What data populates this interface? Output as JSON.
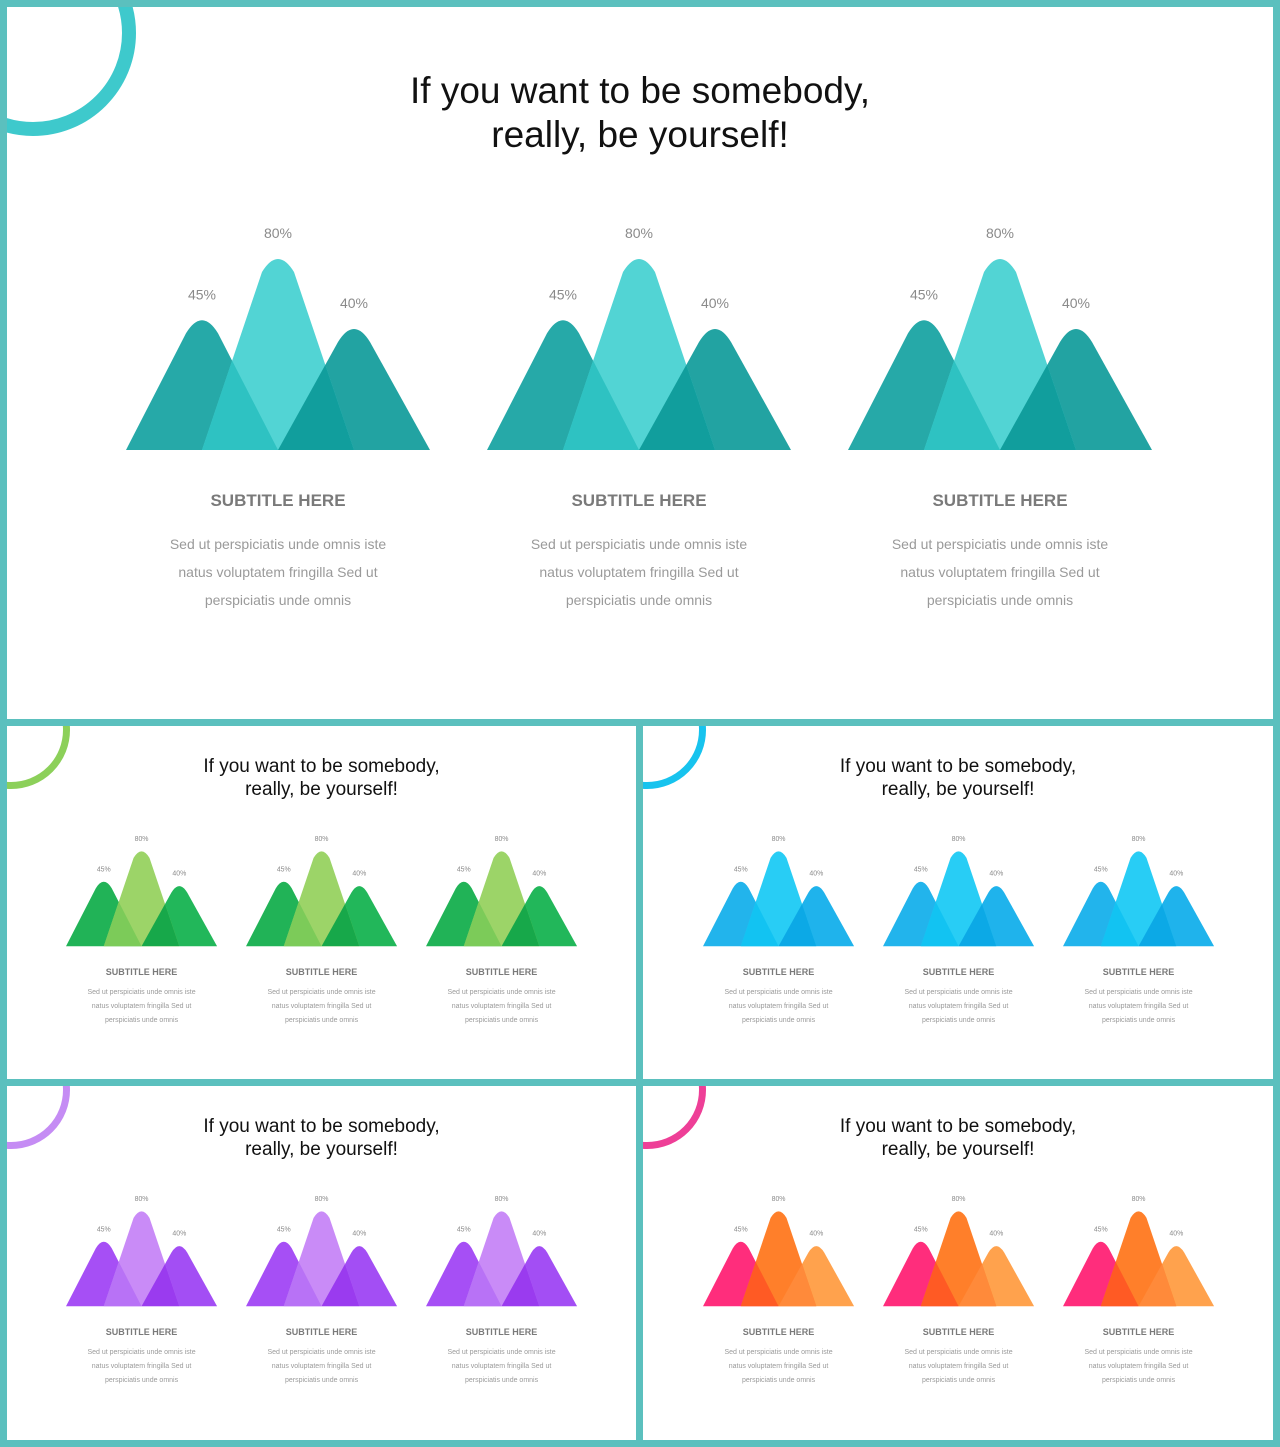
{
  "title_line1": "If you want to be somebody,",
  "title_line2": "really, be yourself!",
  "subtitle": "SUBTITLE HERE",
  "body_line1": "Sed ut perspiciatis unde omnis  iste",
  "body_line2": "natus voluptatem  fringilla Sed ut",
  "body_line3": "perspiciatis unde omnis",
  "peaks": [
    {
      "label": "45%",
      "value": 45
    },
    {
      "label": "80%",
      "value": 80
    },
    {
      "label": "40%",
      "value": 40
    }
  ],
  "themes": {
    "teal": {
      "ring": "#3ec9cc",
      "left": "#26a9a8",
      "mid": "#52d4d4",
      "right": "#22a3a2",
      "ov_lm": "#2ec2c2",
      "ov_mr": "#119e9d"
    },
    "green": {
      "ring": "#8cd05a",
      "left": "#21b357",
      "mid": "#9cd468",
      "right": "#22b75a",
      "ov_lm": "#7ccb59",
      "ov_mr": "#17a84a"
    },
    "blue": {
      "ring": "#17c3ee",
      "left": "#22b4ec",
      "mid": "#28cdf5",
      "right": "#1fb3ec",
      "ov_lm": "#12c3f2",
      "ov_mr": "#0ca9e6"
    },
    "purple": {
      "ring": "#c58cf4",
      "left": "#a64ff5",
      "mid": "#c98bf7",
      "right": "#a34ef4",
      "ov_lm": "#b872f6",
      "ov_mr": "#9a3bef"
    },
    "orange": {
      "ring": "#ee3f97",
      "left": "#ff2d7c",
      "mid": "#ff7f2a",
      "right": "#ffa24d",
      "ov_lm": "#ff5a24",
      "ov_mr": "#ff8a3a"
    }
  }
}
